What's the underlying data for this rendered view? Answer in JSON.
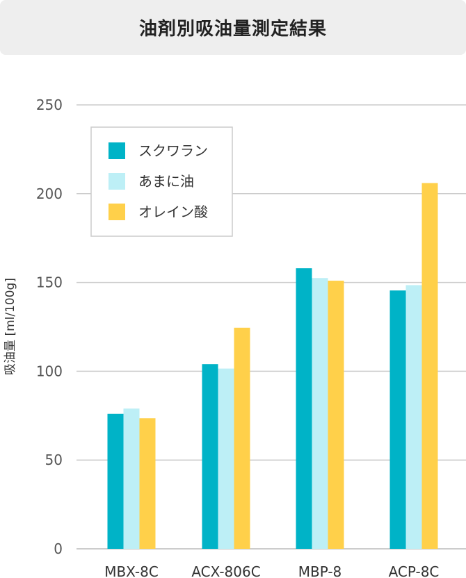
{
  "title": "油剤別吸油量測定結果",
  "chart_data": {
    "type": "bar",
    "title": "油剤別吸油量測定結果",
    "ylabel": "吸油量 [ml/100g]",
    "xlabel": "",
    "ylim": [
      0,
      250
    ],
    "yticks": [
      0,
      50,
      100,
      150,
      200,
      250
    ],
    "grid": true,
    "legend_position": "top-left",
    "categories": [
      "MBX-8C",
      "ACX-806C",
      "MBP-8",
      "ACP-8C"
    ],
    "series": [
      {
        "name": "スクワラン",
        "color": "#00b3c7",
        "values": [
          76,
          104,
          158,
          145.5
        ]
      },
      {
        "name": "あまに油",
        "color": "#bdeff6",
        "values": [
          79,
          101.5,
          152.5,
          148.5
        ]
      },
      {
        "name": "オレイン酸",
        "color": "#ffd04a",
        "values": [
          73.5,
          124.5,
          151,
          206
        ]
      }
    ]
  }
}
